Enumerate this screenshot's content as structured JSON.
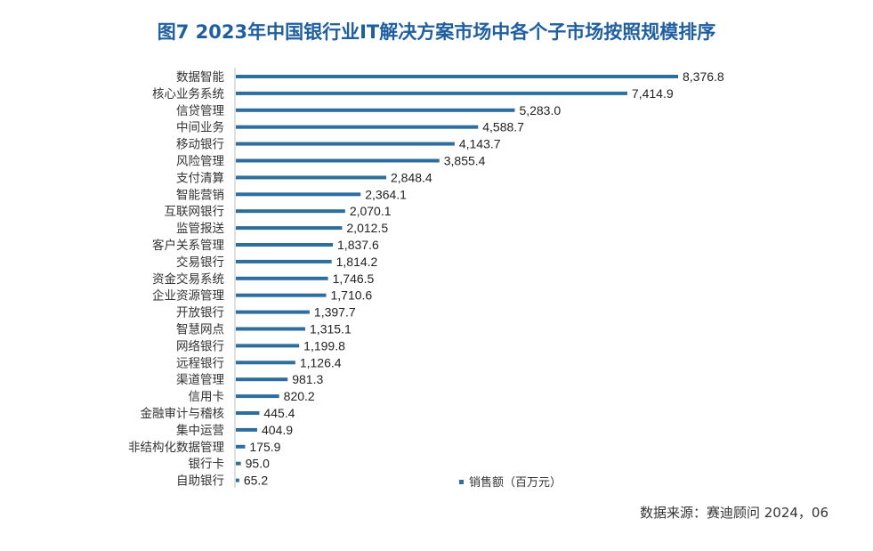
{
  "title": "图7  2023年中国银行业IT解决方案市场中各个子市场按照规模排序",
  "source": "数据来源：赛迪顾问 2024，06",
  "colors": {
    "bar": "#2e6e9e",
    "title": "#1f5fa0",
    "text": "#333333"
  },
  "chart_data": {
    "type": "bar",
    "orientation": "horizontal",
    "categories": [
      "数据智能",
      "核心业务系统",
      "信贷管理",
      "中间业务",
      "移动银行",
      "风险管理",
      "支付清算",
      "智能营销",
      "互联网银行",
      "监管报送",
      "客户关系管理",
      "交易银行",
      "资金交易系统",
      "企业资源管理",
      "开放银行",
      "智慧网点",
      "网络银行",
      "远程银行",
      "渠道管理",
      "信用卡",
      "金融审计与稽核",
      "集中运营",
      "非结构化数据管理",
      "银行卡",
      "自助银行"
    ],
    "series": [
      {
        "name": "销售额（百万元）",
        "values": [
          8376.8,
          7414.9,
          5283.0,
          4588.7,
          4143.7,
          3855.4,
          2848.4,
          2364.1,
          2070.1,
          2012.5,
          1837.6,
          1814.2,
          1746.5,
          1710.6,
          1397.7,
          1315.1,
          1199.8,
          1126.4,
          981.3,
          820.2,
          445.4,
          404.9,
          175.9,
          95.0,
          65.2
        ]
      }
    ],
    "value_labels": [
      "8,376.8",
      "7,414.9",
      "5,283.0",
      "4,588.7",
      "4,143.7",
      "3,855.4",
      "2,848.4",
      "2,364.1",
      "2,070.1",
      "2,012.5",
      "1,837.6",
      "1,814.2",
      "1,746.5",
      "1,710.6",
      "1,397.7",
      "1,315.1",
      "1,199.8",
      "1,126.4",
      "981.3",
      "820.2",
      "445.4",
      "404.9",
      "175.9",
      "95.0",
      "65.2"
    ],
    "legend": {
      "label": "销售额（百万元）",
      "position": "bottom-center"
    },
    "xlim": [
      0,
      8376.8
    ],
    "grid": false
  }
}
